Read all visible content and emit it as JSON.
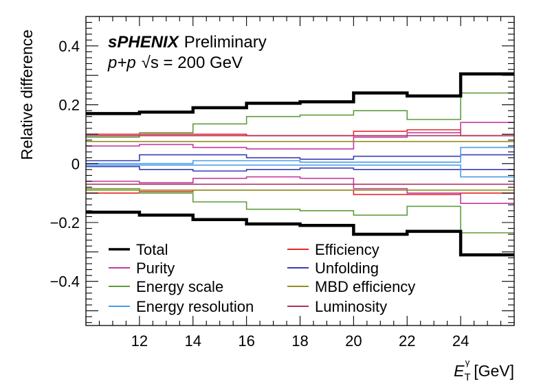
{
  "chart_data": {
    "type": "line",
    "step": true,
    "xlabel": "E_T^γ [GeV]",
    "xlabel_parts": {
      "main": "E",
      "sub": "T",
      "sup": "γ",
      "unit": "[GeV]"
    },
    "ylabel": "Relative difference",
    "xlim": [
      10,
      26
    ],
    "ylim": [
      -0.55,
      0.5
    ],
    "xticks": [
      12,
      14,
      16,
      18,
      20,
      22,
      24
    ],
    "yticks": [
      -0.4,
      -0.2,
      0,
      0.2,
      0.4
    ],
    "ytick_labels": [
      "−0.4",
      "−0.2",
      "0",
      "0.2",
      "0.4"
    ],
    "bin_edges": [
      10,
      12,
      14,
      16,
      18,
      20,
      22,
      24,
      26
    ],
    "annotations": {
      "experiment": "sPHENIX",
      "status": "Preliminary",
      "system": "p+p",
      "energy": "√s = 200 GeV"
    },
    "legend_position": "bottom-left, two columns",
    "series": [
      {
        "name": "Total",
        "color": "#000000",
        "width": 4.5,
        "up": [
          0.17,
          0.175,
          0.19,
          0.205,
          0.21,
          0.24,
          0.23,
          0.305
        ],
        "down": [
          -0.165,
          -0.175,
          -0.19,
          -0.205,
          -0.21,
          -0.24,
          -0.23,
          -0.31
        ]
      },
      {
        "name": "Efficiency",
        "color": "#e8262a",
        "width": 1.6,
        "up": [
          0.1,
          0.1,
          0.1,
          0.095,
          0.095,
          0.11,
          0.115,
          0.095
        ],
        "down": [
          -0.1,
          -0.095,
          -0.09,
          -0.09,
          -0.09,
          -0.105,
          -0.105,
          -0.1
        ]
      },
      {
        "name": "Purity",
        "color": "#c0399e",
        "width": 1.6,
        "up": [
          0.06,
          0.065,
          0.055,
          0.05,
          0.05,
          0.09,
          0.105,
          0.14
        ],
        "down": [
          -0.06,
          -0.065,
          -0.05,
          -0.045,
          -0.05,
          -0.085,
          -0.1,
          -0.135
        ]
      },
      {
        "name": "Unfolding",
        "color": "#3a3ab8",
        "width": 1.6,
        "up": [
          0.01,
          0.03,
          0.03,
          0.02,
          0.015,
          0.025,
          0.025,
          0.03
        ],
        "down": [
          -0.01,
          -0.02,
          -0.025,
          -0.02,
          -0.015,
          -0.02,
          -0.02,
          -0.02
        ]
      },
      {
        "name": "Energy scale",
        "color": "#5e9c3a",
        "width": 1.6,
        "up": [
          0.09,
          0.105,
          0.135,
          0.16,
          0.165,
          0.18,
          0.15,
          0.24
        ],
        "down": [
          -0.085,
          -0.1,
          -0.13,
          -0.155,
          -0.16,
          -0.175,
          -0.145,
          -0.235
        ]
      },
      {
        "name": "MBD efficiency",
        "color": "#8f8f1f",
        "width": 1.6,
        "up": [
          0.075,
          0.075,
          0.075,
          0.075,
          0.075,
          0.075,
          0.075,
          0.075
        ],
        "down": [
          -0.09,
          -0.09,
          -0.09,
          -0.09,
          -0.09,
          -0.09,
          -0.09,
          -0.09
        ]
      },
      {
        "name": "Energy resolution",
        "color": "#4a9de8",
        "width": 1.6,
        "up": [
          0.0,
          0.0,
          0.01,
          0.01,
          0.005,
          0.005,
          0.005,
          0.055
        ],
        "down": [
          -0.005,
          -0.005,
          -0.005,
          -0.005,
          -0.005,
          -0.005,
          -0.005,
          -0.045
        ]
      },
      {
        "name": "Luminosity",
        "color": "#b03060",
        "width": 1.6,
        "up": [
          0.095,
          0.095,
          0.095,
          0.095,
          0.095,
          0.095,
          0.095,
          0.095
        ],
        "down": [
          -0.07,
          -0.07,
          -0.07,
          -0.07,
          -0.07,
          -0.07,
          -0.07,
          -0.07
        ]
      }
    ],
    "legend_columns": [
      [
        "Total",
        "Purity",
        "Energy scale",
        "Energy resolution"
      ],
      [
        "Efficiency",
        "Unfolding",
        "MBD efficiency",
        "Luminosity"
      ]
    ]
  }
}
